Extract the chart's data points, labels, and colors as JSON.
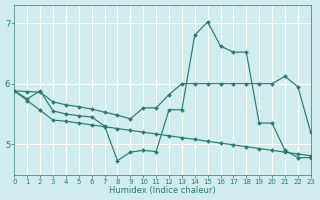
{
  "xlabel": "Humidex (Indice chaleur)",
  "bg_color": "#d0ecec",
  "grid_color": "#ffffff",
  "line_color": "#2a7a70",
  "xlim": [
    0,
    23
  ],
  "ylim": [
    4.5,
    7.3
  ],
  "yticks": [
    5,
    6,
    7
  ],
  "xticks": [
    0,
    1,
    2,
    3,
    4,
    5,
    6,
    7,
    8,
    9,
    10,
    11,
    12,
    13,
    14,
    15,
    16,
    17,
    18,
    19,
    20,
    21,
    22,
    23
  ],
  "line1_x": [
    0,
    1,
    2,
    3,
    4,
    5,
    6,
    7,
    8,
    9,
    10,
    11,
    12,
    13,
    14,
    15,
    16,
    17,
    18,
    19,
    20,
    21,
    22,
    23
  ],
  "line1_y": [
    5.88,
    5.72,
    5.56,
    5.4,
    5.38,
    5.35,
    5.32,
    5.29,
    5.26,
    5.23,
    5.2,
    5.17,
    5.14,
    5.11,
    5.08,
    5.05,
    5.02,
    4.99,
    4.96,
    4.93,
    4.9,
    4.87,
    4.84,
    4.81
  ],
  "line2_x": [
    0,
    1,
    2,
    3,
    4,
    5,
    6,
    7,
    8,
    9,
    10,
    11,
    12,
    13,
    14,
    15,
    16,
    17,
    18,
    19,
    20,
    21,
    22,
    23
  ],
  "line2_y": [
    5.88,
    5.87,
    5.86,
    5.7,
    5.65,
    5.62,
    5.58,
    5.53,
    5.48,
    5.42,
    5.6,
    5.6,
    5.82,
    6.0,
    6.0,
    6.0,
    6.0,
    6.0,
    6.0,
    6.0,
    6.0,
    6.12,
    5.95,
    5.2
  ],
  "line3_x": [
    0,
    1,
    2,
    3,
    4,
    5,
    6,
    7,
    8,
    9,
    10,
    11,
    12,
    13,
    14,
    15,
    16,
    17,
    18,
    19,
    20,
    21,
    22,
    23
  ],
  "line3_y": [
    5.88,
    5.75,
    5.88,
    5.55,
    5.5,
    5.47,
    5.45,
    5.3,
    4.73,
    4.87,
    4.9,
    4.88,
    5.57,
    5.57,
    6.8,
    7.02,
    6.62,
    6.52,
    6.52,
    5.35,
    5.35,
    4.9,
    4.78,
    4.78
  ],
  "markersize": 2.0,
  "linewidth": 0.85
}
